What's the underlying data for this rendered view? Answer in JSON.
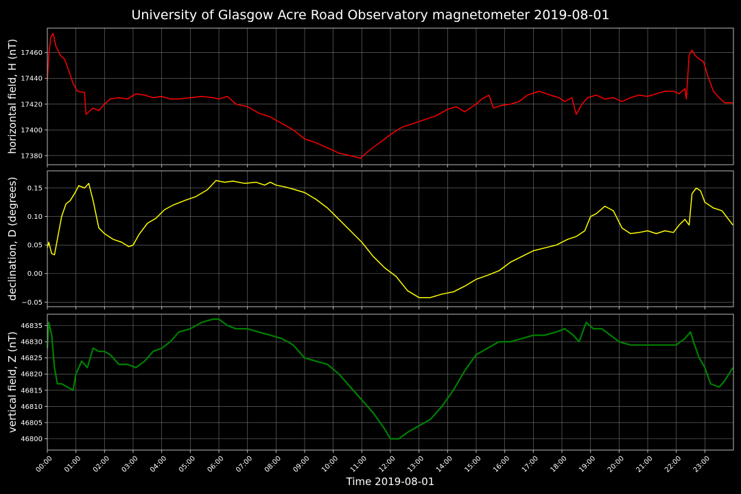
{
  "figure": {
    "title": "University of Glasgow Acre Road Observatory magnetometer 2019-08-01",
    "background": "#000000",
    "text_color": "#ffffff",
    "grid_color": "#777777",
    "spine_color": "#bbbbbb"
  },
  "chart_data": [
    {
      "type": "line",
      "ylabel": "horizontal field, H (nT)",
      "xlabel": "",
      "color": "#ff0000",
      "grid": true,
      "ylim": [
        17373,
        17479
      ],
      "yticks": [
        17380,
        17400,
        17420,
        17440,
        17460
      ],
      "ytick_labels": [
        "17380",
        "17400",
        "17420",
        "17440",
        "17460"
      ],
      "x": [
        0,
        0.05,
        0.12,
        0.2,
        0.3,
        0.45,
        0.6,
        0.75,
        0.9,
        1.05,
        1.3,
        1.35,
        1.45,
        1.6,
        1.8,
        2.0,
        2.2,
        2.5,
        2.8,
        3.1,
        3.4,
        3.7,
        4.0,
        4.3,
        4.6,
        5.0,
        5.4,
        5.8,
        6.0,
        6.3,
        6.6,
        7.0,
        7.4,
        7.8,
        8.2,
        8.6,
        9.0,
        9.4,
        9.8,
        10.2,
        10.6,
        10.95,
        11.2,
        11.5,
        11.8,
        12.1,
        12.4,
        12.8,
        13.2,
        13.6,
        14.0,
        14.3,
        14.6,
        15.0,
        15.2,
        15.45,
        15.6,
        15.9,
        16.2,
        16.5,
        16.8,
        17.2,
        17.6,
        17.9,
        18.1,
        18.35,
        18.5,
        18.7,
        18.9,
        19.2,
        19.5,
        19.8,
        20.1,
        20.4,
        20.7,
        21.0,
        21.3,
        21.6,
        21.9,
        22.1,
        22.3,
        22.35,
        22.45,
        22.55,
        22.65,
        22.8,
        22.95,
        23.1,
        23.3,
        23.5,
        23.7,
        23.98
      ],
      "y": [
        17438,
        17458,
        17472,
        17475,
        17465,
        17458,
        17455,
        17446,
        17436,
        17430,
        17429,
        17412,
        17414,
        17417,
        17415,
        17420,
        17424,
        17425,
        17424,
        17428,
        17427,
        17425,
        17426,
        17424,
        17424,
        17425,
        17426,
        17425,
        17424,
        17426,
        17420,
        17418,
        17413,
        17410,
        17405,
        17400,
        17393,
        17390,
        17386,
        17382,
        17380,
        17378,
        17383,
        17388,
        17393,
        17398,
        17402,
        17405,
        17408,
        17411,
        17416,
        17418,
        17414,
        17420,
        17424,
        17427,
        17417,
        17419,
        17420,
        17422,
        17427,
        17430,
        17427,
        17425,
        17422,
        17425,
        17412,
        17420,
        17425,
        17427,
        17424,
        17425,
        17422,
        17425,
        17427,
        17426,
        17428,
        17430,
        17430,
        17428,
        17432,
        17424,
        17458,
        17462,
        17458,
        17455,
        17453,
        17442,
        17430,
        17425,
        17421,
        17421
      ]
    },
    {
      "type": "line",
      "ylabel": "declination, D (degrees)",
      "xlabel": "",
      "color": "#ffff00",
      "grid": true,
      "ylim": [
        -0.058,
        0.18
      ],
      "yticks": [
        -0.05,
        0.0,
        0.05,
        0.1,
        0.15
      ],
      "ytick_labels": [
        "−0.05",
        "0.00",
        "0.05",
        "0.10",
        "0.15"
      ],
      "x": [
        0,
        0.05,
        0.15,
        0.25,
        0.35,
        0.5,
        0.65,
        0.8,
        0.95,
        1.1,
        1.3,
        1.45,
        1.6,
        1.8,
        2.0,
        2.3,
        2.6,
        2.85,
        3.0,
        3.2,
        3.5,
        3.8,
        4.1,
        4.4,
        4.8,
        5.2,
        5.6,
        5.9,
        6.2,
        6.5,
        6.9,
        7.3,
        7.6,
        7.8,
        8.0,
        8.3,
        8.6,
        9.0,
        9.4,
        9.8,
        10.2,
        10.6,
        11.0,
        11.4,
        11.8,
        12.2,
        12.6,
        13.0,
        13.4,
        13.8,
        14.2,
        14.6,
        15.0,
        15.4,
        15.8,
        16.2,
        16.6,
        17.0,
        17.4,
        17.8,
        18.2,
        18.5,
        18.8,
        19.0,
        19.2,
        19.5,
        19.8,
        20.1,
        20.4,
        20.7,
        21.0,
        21.3,
        21.6,
        21.9,
        22.1,
        22.3,
        22.45,
        22.55,
        22.7,
        22.85,
        23.0,
        23.3,
        23.6,
        23.98
      ],
      "y": [
        0.045,
        0.055,
        0.035,
        0.033,
        0.06,
        0.1,
        0.122,
        0.128,
        0.14,
        0.154,
        0.15,
        0.158,
        0.128,
        0.08,
        0.07,
        0.06,
        0.055,
        0.047,
        0.05,
        0.068,
        0.088,
        0.097,
        0.112,
        0.12,
        0.128,
        0.135,
        0.147,
        0.163,
        0.16,
        0.162,
        0.158,
        0.16,
        0.155,
        0.16,
        0.155,
        0.152,
        0.148,
        0.142,
        0.13,
        0.115,
        0.095,
        0.075,
        0.055,
        0.03,
        0.01,
        -0.005,
        -0.03,
        -0.042,
        -0.042,
        -0.036,
        -0.032,
        -0.022,
        -0.01,
        -0.003,
        0.005,
        0.02,
        0.03,
        0.04,
        0.045,
        0.05,
        0.06,
        0.065,
        0.075,
        0.1,
        0.105,
        0.118,
        0.11,
        0.08,
        0.07,
        0.072,
        0.075,
        0.07,
        0.075,
        0.072,
        0.085,
        0.095,
        0.085,
        0.14,
        0.15,
        0.145,
        0.125,
        0.115,
        0.11,
        0.085
      ]
    },
    {
      "type": "line",
      "ylabel": "vertical field, Z (nT)",
      "xlabel": "Time 2019-08-01",
      "color": "#008000",
      "grid": true,
      "ylim": [
        46796.5,
        46838.5
      ],
      "yticks": [
        46800,
        46805,
        46810,
        46815,
        46820,
        46825,
        46830,
        46835
      ],
      "ytick_labels": [
        "46800",
        "46805",
        "46810",
        "46815",
        "46820",
        "46825",
        "46830",
        "46835"
      ],
      "x": [
        0,
        0.05,
        0.15,
        0.25,
        0.35,
        0.5,
        0.7,
        0.9,
        1.0,
        1.2,
        1.4,
        1.6,
        1.8,
        2.0,
        2.2,
        2.5,
        2.8,
        3.1,
        3.4,
        3.7,
        4.0,
        4.3,
        4.6,
        5.0,
        5.4,
        5.8,
        6.0,
        6.3,
        6.6,
        7.0,
        7.4,
        7.8,
        8.2,
        8.6,
        9.0,
        9.4,
        9.8,
        10.2,
        10.6,
        11.0,
        11.4,
        11.8,
        12.0,
        12.3,
        12.6,
        13.0,
        13.4,
        13.8,
        14.2,
        14.6,
        15.0,
        15.4,
        15.8,
        16.2,
        16.6,
        17.0,
        17.4,
        17.8,
        18.1,
        18.4,
        18.6,
        18.85,
        19.1,
        19.4,
        19.7,
        20.0,
        20.4,
        20.8,
        21.2,
        21.6,
        22.0,
        22.3,
        22.5,
        22.6,
        22.8,
        23.0,
        23.2,
        23.5,
        23.7,
        23.98
      ],
      "y": [
        46828,
        46836,
        46832,
        46822,
        46817,
        46817,
        46816,
        46815,
        46820,
        46824,
        46822,
        46828,
        46827,
        46827,
        46826,
        46823,
        46823,
        46822,
        46824,
        46827,
        46828,
        46830,
        46833,
        46834,
        46836,
        46837,
        46837,
        46835,
        46834,
        46834,
        46833,
        46832,
        46831,
        46829,
        46825,
        46824,
        46823,
        46820,
        46816,
        46812,
        46808,
        46803,
        46800,
        46800,
        46802,
        46804,
        46806,
        46810,
        46815,
        46821,
        46826,
        46828,
        46830,
        46830,
        46831,
        46832,
        46832,
        46833,
        46834,
        46832,
        46830,
        46836,
        46834,
        46834,
        46832,
        46830,
        46829,
        46829,
        46829,
        46829,
        46829,
        46831,
        46833,
        46830,
        46825,
        46822,
        46817,
        46816,
        46818,
        46822
      ]
    }
  ],
  "x_axis": {
    "xlim": [
      0,
      24
    ],
    "ticks": [
      0,
      1,
      2,
      3,
      4,
      5,
      6,
      7,
      8,
      9,
      10,
      11,
      12,
      13,
      14,
      15,
      16,
      17,
      18,
      19,
      20,
      21,
      22,
      23
    ],
    "tick_labels": [
      "00:00",
      "01:00",
      "02:00",
      "03:00",
      "04:00",
      "05:00",
      "06:00",
      "07:00",
      "08:00",
      "09:00",
      "10:00",
      "11:00",
      "12:00",
      "13:00",
      "14:00",
      "15:00",
      "16:00",
      "17:00",
      "18:00",
      "19:00",
      "20:00",
      "21:00",
      "22:00",
      "23:00"
    ],
    "label": "Time 2019-08-01"
  }
}
